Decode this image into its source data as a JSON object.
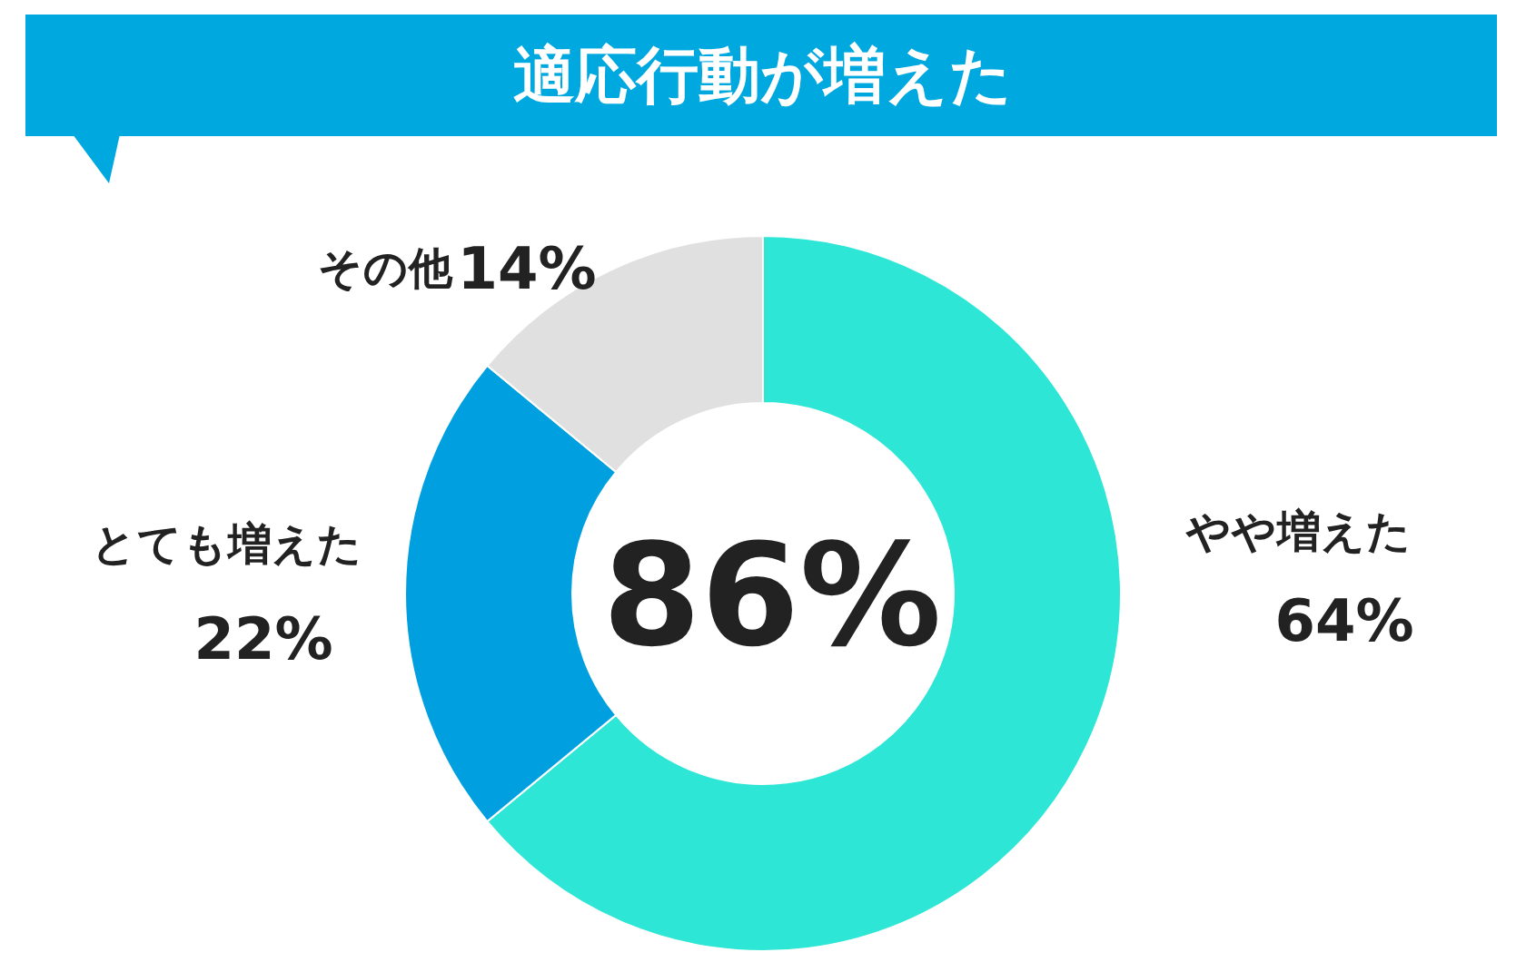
{
  "chart_data": {
    "type": "donut",
    "title": "適応行動が増えた",
    "categories": [
      "やや増えた",
      "とても増えた",
      "その他"
    ],
    "values": [
      64,
      22,
      14
    ],
    "colors": [
      "#2ee6d6",
      "#00a0e0",
      "#e0e0e0"
    ],
    "value_labels": [
      "64%",
      "22%",
      "14%"
    ],
    "annotations": [
      "86%"
    ]
  }
}
